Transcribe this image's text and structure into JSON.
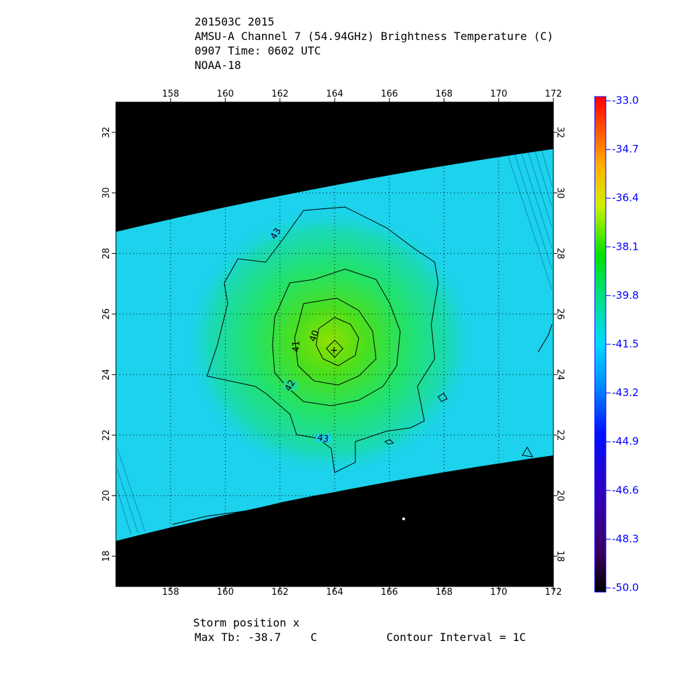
{
  "header": {
    "line1": "201503C 2015",
    "line2": "AMSU-A Channel 7 (54.94GHz) Brightness Temperature (C)",
    "line3": "0907 Time: 0602 UTC",
    "line4": "NOAA-18"
  },
  "map": {
    "lon_ticks": [
      "158",
      "160",
      "162",
      "164",
      "166",
      "168",
      "170",
      "172"
    ],
    "lat_ticks": [
      "18",
      "20",
      "22",
      "24",
      "26",
      "28",
      "30",
      "32"
    ],
    "lon_range": [
      156,
      172
    ],
    "lat_range": [
      17,
      33
    ],
    "contour_labels": [
      "43",
      "42",
      "41",
      "40",
      "43"
    ]
  },
  "colorbar": {
    "ticks": [
      "-33.0",
      "-34.7",
      "-36.4",
      "-38.1",
      "-39.8",
      "-41.5",
      "-43.2",
      "-44.9",
      "-46.6",
      "-48.3",
      "-50.0"
    ],
    "range": [
      -50.0,
      -33.0
    ]
  },
  "footer": {
    "storm_position": "Storm position x",
    "max_tb_label": "Max Tb: -38.7",
    "max_tb_unit": "C",
    "contour_interval": "Contour Interval = 1C"
  }
}
